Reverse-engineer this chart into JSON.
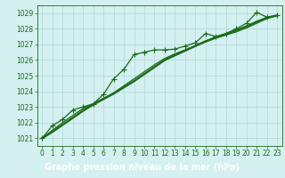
{
  "x_ticks": [
    0,
    1,
    2,
    3,
    4,
    5,
    6,
    7,
    8,
    9,
    10,
    11,
    12,
    13,
    14,
    15,
    16,
    17,
    18,
    19,
    20,
    21,
    22,
    23
  ],
  "series_marker": {
    "x": [
      0,
      1,
      2,
      3,
      4,
      5,
      6,
      7,
      8,
      9,
      10,
      11,
      12,
      13,
      14,
      15,
      16,
      17,
      18,
      19,
      20,
      21,
      22,
      23
    ],
    "y": [
      1021.0,
      1021.8,
      1022.2,
      1022.8,
      1023.0,
      1023.2,
      1023.8,
      1024.8,
      1025.4,
      1026.35,
      1026.5,
      1026.65,
      1026.65,
      1026.7,
      1026.9,
      1027.1,
      1027.7,
      1027.5,
      1027.7,
      1028.0,
      1028.35,
      1029.05,
      1028.75,
      1028.85
    ],
    "color": "#1a6b1a",
    "linewidth": 0.9,
    "marker": "+",
    "markersize": 4.0
  },
  "series_thin": {
    "x": [
      0,
      1,
      2,
      3,
      4,
      5,
      6,
      7,
      8,
      9,
      10,
      11,
      12,
      13,
      14,
      15,
      16,
      17,
      18,
      19,
      20,
      21,
      22,
      23
    ],
    "y": [
      1021.0,
      1021.5,
      1022.0,
      1022.45,
      1022.9,
      1023.2,
      1023.55,
      1023.9,
      1024.35,
      1024.8,
      1025.25,
      1025.7,
      1026.1,
      1026.4,
      1026.65,
      1026.9,
      1027.15,
      1027.4,
      1027.6,
      1027.8,
      1028.05,
      1028.35,
      1028.65,
      1028.85
    ],
    "color": "#1a6b1a",
    "linewidth": 0.9
  },
  "series_thick": {
    "x": [
      0,
      1,
      2,
      3,
      4,
      5,
      6,
      7,
      8,
      9,
      10,
      11,
      12,
      13,
      14,
      15,
      16,
      17,
      18,
      19,
      20,
      21,
      22,
      23
    ],
    "y": [
      1021.0,
      1021.4,
      1021.85,
      1022.3,
      1022.75,
      1023.15,
      1023.5,
      1023.85,
      1024.25,
      1024.65,
      1025.1,
      1025.55,
      1026.0,
      1026.3,
      1026.6,
      1026.9,
      1027.2,
      1027.45,
      1027.65,
      1027.9,
      1028.15,
      1028.45,
      1028.7,
      1028.85
    ],
    "color": "#1a6b1a",
    "linewidth": 1.7
  },
  "ylim": [
    1020.5,
    1029.5
  ],
  "yticks": [
    1021,
    1022,
    1023,
    1024,
    1025,
    1026,
    1027,
    1028,
    1029
  ],
  "xlim": [
    -0.5,
    23.5
  ],
  "bg_color": "#d4f0f0",
  "grid_color": "#b0d8d8",
  "line_color": "#1a6b1a",
  "xlabel": "Graphe pression niveau de la mer (hPa)",
  "xlabel_fontsize": 7.0,
  "tick_fontsize": 5.5,
  "fig_bg": "#d4f0f0",
  "bottom_bar_color": "#2a7a2a",
  "bottom_bar_height": 0.13
}
